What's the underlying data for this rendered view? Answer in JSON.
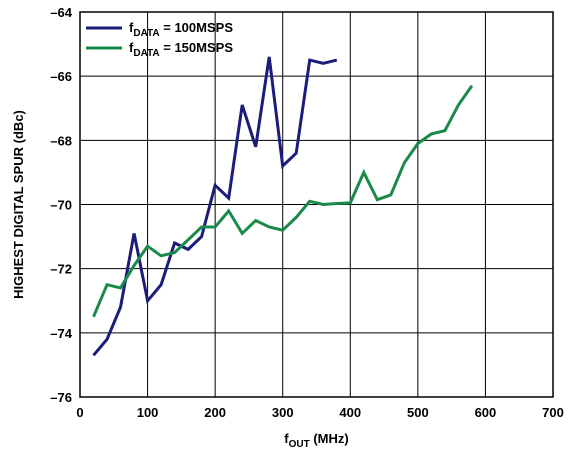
{
  "chart_data": {
    "type": "line",
    "xlabel": {
      "main": "f",
      "sub": "OUT",
      "rest": " (MHz)"
    },
    "ylabel": "HIGHEST DIGITAL SPUR (dBc)",
    "xlim": [
      0,
      700
    ],
    "ylim": [
      -76,
      -64
    ],
    "xticks": [
      0,
      100,
      200,
      300,
      400,
      500,
      600,
      700
    ],
    "yticks": [
      -76,
      -74,
      -72,
      -70,
      -68,
      -66,
      -64
    ],
    "xtick_labels": [
      "0",
      "100",
      "200",
      "300",
      "400",
      "500",
      "600",
      "700"
    ],
    "ytick_labels": [
      "–76",
      "–74",
      "–72",
      "–70",
      "–68",
      "–66",
      "–64"
    ],
    "grid": true,
    "legend_position": "top-left",
    "series": [
      {
        "name": "f_DATA = 100MSPS",
        "legend": {
          "main": "f",
          "sub": "DATA",
          "rest": " = 100MSPS"
        },
        "color": "#1c1c7a",
        "x": [
          20,
          40,
          60,
          80,
          100,
          120,
          140,
          160,
          180,
          200,
          220,
          240,
          260,
          280,
          300,
          320,
          340,
          360,
          380
        ],
        "y": [
          -74.7,
          -74.2,
          -73.2,
          -70.9,
          -73.0,
          -72.5,
          -71.2,
          -71.4,
          -71.0,
          -69.4,
          -69.8,
          -66.9,
          -68.2,
          -65.4,
          -68.8,
          -68.4,
          -65.5,
          -65.6,
          -65.5
        ]
      },
      {
        "name": "f_DATA = 150MSPS",
        "legend": {
          "main": "f",
          "sub": "DATA",
          "rest": " = 150MSPS"
        },
        "color": "#1a8a4a",
        "x": [
          20,
          40,
          60,
          80,
          100,
          120,
          140,
          160,
          180,
          200,
          220,
          240,
          260,
          280,
          300,
          320,
          340,
          360,
          380,
          400,
          420,
          440,
          460,
          480,
          500,
          520,
          540,
          560,
          580
        ],
        "y": [
          -73.5,
          -72.5,
          -72.6,
          -71.9,
          -71.3,
          -71.6,
          -71.5,
          -71.1,
          -70.7,
          -70.7,
          -70.2,
          -70.9,
          -70.5,
          -70.7,
          -70.8,
          -70.4,
          -69.9,
          -70.0,
          -69.97,
          -69.95,
          -69.0,
          -69.85,
          -69.7,
          -68.7,
          -68.1,
          -67.8,
          -67.7,
          -66.9,
          -66.3
        ]
      }
    ]
  }
}
